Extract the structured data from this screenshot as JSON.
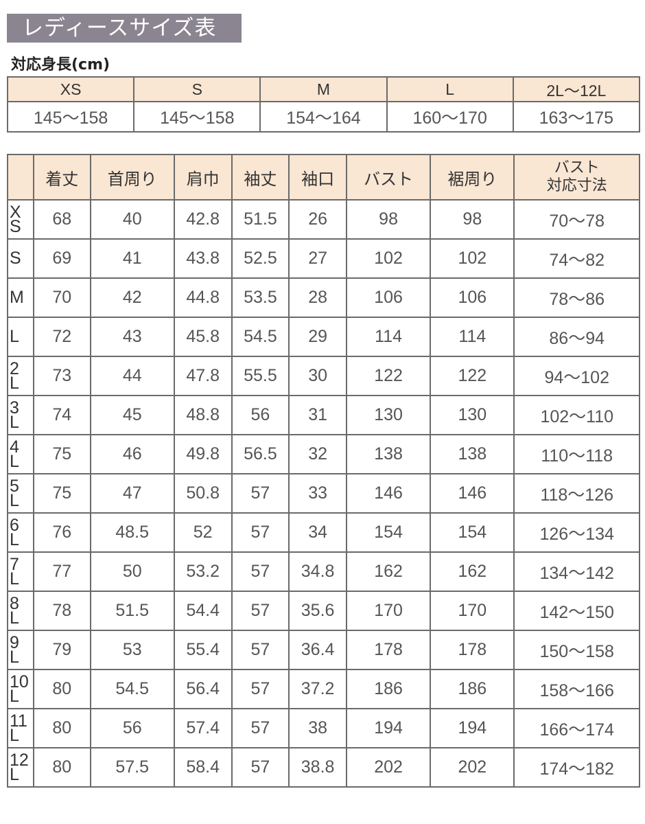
{
  "title": "レディースサイズ表",
  "height_table": {
    "label": "対応身長(cm)",
    "sizes": [
      "XS",
      "S",
      "M",
      "L",
      "2L〜12L"
    ],
    "values": [
      "145〜158",
      "145〜158",
      "154〜164",
      "160〜170",
      "163〜175"
    ]
  },
  "size_table": {
    "headers": [
      "着丈",
      "首周り",
      "肩巾",
      "袖丈",
      "袖口",
      "バスト",
      "裾周り",
      "バスト\n対応寸法"
    ],
    "header_last_lines": [
      "バスト",
      "対応寸法"
    ],
    "rows": [
      {
        "size": [
          "X",
          "S"
        ],
        "values": [
          "68",
          "40",
          "42.8",
          "51.5",
          "26",
          "98",
          "98",
          "70〜78"
        ]
      },
      {
        "size": [
          "S"
        ],
        "values": [
          "69",
          "41",
          "43.8",
          "52.5",
          "27",
          "102",
          "102",
          "74〜82"
        ]
      },
      {
        "size": [
          "M"
        ],
        "values": [
          "70",
          "42",
          "44.8",
          "53.5",
          "28",
          "106",
          "106",
          "78〜86"
        ]
      },
      {
        "size": [
          "L"
        ],
        "values": [
          "72",
          "43",
          "45.8",
          "54.5",
          "29",
          "114",
          "114",
          "86〜94"
        ]
      },
      {
        "size": [
          "2",
          "L"
        ],
        "values": [
          "73",
          "44",
          "47.8",
          "55.5",
          "30",
          "122",
          "122",
          "94〜102"
        ]
      },
      {
        "size": [
          "3",
          "L"
        ],
        "values": [
          "74",
          "45",
          "48.8",
          "56",
          "31",
          "130",
          "130",
          "102〜110"
        ]
      },
      {
        "size": [
          "4",
          "L"
        ],
        "values": [
          "75",
          "46",
          "49.8",
          "56.5",
          "32",
          "138",
          "138",
          "110〜118"
        ]
      },
      {
        "size": [
          "5",
          "L"
        ],
        "values": [
          "75",
          "47",
          "50.8",
          "57",
          "33",
          "146",
          "146",
          "118〜126"
        ]
      },
      {
        "size": [
          "6",
          "L"
        ],
        "values": [
          "76",
          "48.5",
          "52",
          "57",
          "34",
          "154",
          "154",
          "126〜134"
        ]
      },
      {
        "size": [
          "7",
          "L"
        ],
        "values": [
          "77",
          "50",
          "53.2",
          "57",
          "34.8",
          "162",
          "162",
          "134〜142"
        ]
      },
      {
        "size": [
          "8",
          "L"
        ],
        "values": [
          "78",
          "51.5",
          "54.4",
          "57",
          "35.6",
          "170",
          "170",
          "142〜150"
        ]
      },
      {
        "size": [
          "9",
          "L"
        ],
        "values": [
          "79",
          "53",
          "55.4",
          "57",
          "36.4",
          "178",
          "178",
          "150〜158"
        ]
      },
      {
        "size": [
          "10",
          "L"
        ],
        "values": [
          "80",
          "54.5",
          "56.4",
          "57",
          "37.2",
          "186",
          "186",
          "158〜166"
        ]
      },
      {
        "size": [
          "11",
          "L"
        ],
        "values": [
          "80",
          "56",
          "57.4",
          "57",
          "38",
          "194",
          "194",
          "166〜174"
        ]
      },
      {
        "size": [
          "12",
          "L"
        ],
        "values": [
          "80",
          "57.5",
          "58.4",
          "57",
          "38.8",
          "202",
          "202",
          "174〜182"
        ]
      }
    ]
  },
  "colors": {
    "title_bg": "#8a8590",
    "header_bg": "#f9e6d3",
    "border": "#6a6a6a",
    "text": "#555555"
  }
}
